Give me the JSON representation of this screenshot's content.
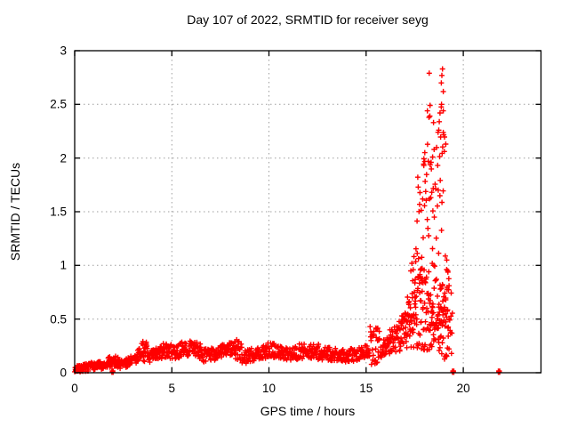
{
  "chart_data": {
    "type": "scatter",
    "title": "Day 107 of 2022, SRMTID for receiver seyg",
    "xlabel": "GPS time / hours",
    "ylabel": "SRMTID / TECUs",
    "xlim": [
      0,
      24
    ],
    "ylim": [
      0,
      3
    ],
    "x_ticks": [
      {
        "v": 0,
        "label": "0"
      },
      {
        "v": 5,
        "label": "5"
      },
      {
        "v": 10,
        "label": "10"
      },
      {
        "v": 15,
        "label": "15"
      },
      {
        "v": 20,
        "label": "20"
      }
    ],
    "y_ticks": [
      {
        "v": 0,
        "label": "0"
      },
      {
        "v": 0.5,
        "label": "0.5"
      },
      {
        "v": 1,
        "label": "1"
      },
      {
        "v": 1.5,
        "label": "1.5"
      },
      {
        "v": 2,
        "label": "2"
      },
      {
        "v": 2.5,
        "label": "2.5"
      },
      {
        "v": 3,
        "label": "3"
      }
    ],
    "grid": true,
    "legend": "none",
    "marker": "plus",
    "marker_color": "#ff0000",
    "grid_color": "#9e9e9e",
    "border_color": "#000000",
    "seed": 7,
    "scatter_envelope": [
      [
        0.0,
        0.4,
        28,
        0.035,
        0.03
      ],
      [
        0.4,
        0.8,
        28,
        0.045,
        0.035
      ],
      [
        0.8,
        1.1,
        20,
        0.06,
        0.035
      ],
      [
        1.1,
        1.4,
        20,
        0.07,
        0.04
      ],
      [
        1.4,
        1.7,
        20,
        0.05,
        0.03
      ],
      [
        1.7,
        2.0,
        20,
        0.1,
        0.05
      ],
      [
        2.0,
        2.3,
        20,
        0.11,
        0.05
      ],
      [
        2.3,
        2.7,
        24,
        0.08,
        0.045
      ],
      [
        2.7,
        3.1,
        24,
        0.1,
        0.05
      ],
      [
        3.1,
        3.45,
        22,
        0.14,
        0.06
      ],
      [
        3.45,
        3.75,
        20,
        0.22,
        0.1
      ],
      [
        3.75,
        4.1,
        22,
        0.15,
        0.06
      ],
      [
        4.1,
        4.5,
        24,
        0.17,
        0.06
      ],
      [
        4.5,
        5.0,
        30,
        0.21,
        0.07
      ],
      [
        5.0,
        5.4,
        24,
        0.18,
        0.06
      ],
      [
        5.4,
        5.9,
        28,
        0.22,
        0.07
      ],
      [
        5.9,
        6.5,
        34,
        0.23,
        0.08
      ],
      [
        6.5,
        7.0,
        28,
        0.16,
        0.06
      ],
      [
        7.0,
        7.5,
        28,
        0.17,
        0.06
      ],
      [
        7.5,
        8.1,
        34,
        0.21,
        0.07
      ],
      [
        8.1,
        8.6,
        28,
        0.23,
        0.1
      ],
      [
        8.6,
        9.2,
        34,
        0.15,
        0.07
      ],
      [
        9.2,
        9.7,
        28,
        0.17,
        0.06
      ],
      [
        9.7,
        10.4,
        38,
        0.21,
        0.08
      ],
      [
        10.4,
        10.9,
        28,
        0.19,
        0.06
      ],
      [
        10.9,
        11.5,
        34,
        0.17,
        0.06
      ],
      [
        11.5,
        12.1,
        34,
        0.2,
        0.07
      ],
      [
        12.1,
        12.6,
        28,
        0.19,
        0.08
      ],
      [
        12.6,
        13.2,
        34,
        0.18,
        0.06
      ],
      [
        13.2,
        13.9,
        38,
        0.17,
        0.06
      ],
      [
        13.9,
        14.6,
        38,
        0.16,
        0.06
      ],
      [
        14.6,
        15.2,
        34,
        0.18,
        0.06
      ],
      [
        15.2,
        15.7,
        30,
        0.25,
        0.18
      ],
      [
        15.7,
        16.2,
        30,
        0.22,
        0.09
      ],
      [
        16.2,
        16.7,
        30,
        0.28,
        0.12
      ],
      [
        16.7,
        17.1,
        30,
        0.38,
        0.2
      ],
      [
        17.1,
        17.5,
        34,
        0.45,
        0.28
      ],
      [
        17.5,
        17.9,
        34,
        0.55,
        0.35
      ],
      [
        17.9,
        18.3,
        36,
        0.6,
        0.4
      ],
      [
        18.3,
        18.7,
        36,
        0.55,
        0.35
      ],
      [
        18.7,
        19.0,
        32,
        0.55,
        0.35
      ],
      [
        19.0,
        19.25,
        22,
        0.45,
        0.33
      ],
      [
        19.25,
        19.45,
        10,
        0.45,
        0.3
      ],
      [
        17.3,
        17.6,
        8,
        0.95,
        0.25
      ],
      [
        17.6,
        17.9,
        13,
        1.45,
        0.55
      ],
      [
        17.9,
        18.15,
        11,
        1.55,
        0.55
      ],
      [
        18.15,
        18.45,
        15,
        1.9,
        0.75
      ],
      [
        18.45,
        18.75,
        12,
        1.5,
        0.55
      ],
      [
        18.75,
        19.05,
        15,
        1.75,
        0.8
      ],
      [
        19.05,
        19.3,
        7,
        1.0,
        0.35
      ]
    ],
    "outliers": [
      [
        18.25,
        2.79
      ],
      [
        18.93,
        2.83
      ],
      [
        18.9,
        2.77
      ],
      [
        18.87,
        2.7
      ],
      [
        18.97,
        2.62
      ],
      [
        18.29,
        2.49
      ],
      [
        18.15,
        2.44
      ],
      [
        18.88,
        2.5
      ],
      [
        18.97,
        2.44
      ],
      [
        18.8,
        2.42
      ],
      [
        18.47,
        2.33
      ],
      [
        18.74,
        2.26
      ],
      [
        18.7,
        2.24
      ],
      [
        19.1,
        2.13
      ],
      [
        18.5,
        2.08
      ],
      [
        18.42,
        2.01
      ],
      [
        18.02,
        2.05
      ],
      [
        17.97,
        1.93
      ],
      [
        19.15,
        1.05
      ],
      [
        19.2,
        0.95
      ]
    ],
    "bold_points": [
      [
        1.95,
        0.01
      ],
      [
        19.48,
        0.01
      ],
      [
        21.84,
        0.01
      ]
    ]
  }
}
